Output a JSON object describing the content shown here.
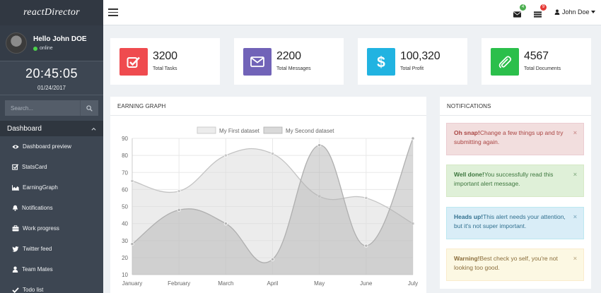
{
  "sidebar": {
    "brand": "reactDirector",
    "user": {
      "name": "Hello John DOE",
      "status": "online"
    },
    "clock": {
      "time": "20:45:05",
      "date": "01/24/2017"
    },
    "search": {
      "placeholder": "Search..."
    },
    "menu_header": "Dashboard",
    "items": [
      {
        "label": "Dashboard preview",
        "icon": "eye-icon"
      },
      {
        "label": "StatsCard",
        "icon": "checkbox-icon"
      },
      {
        "label": "EarningGraph",
        "icon": "area-chart-icon"
      },
      {
        "label": "Notifications",
        "icon": "bell-icon"
      },
      {
        "label": "Work progress",
        "icon": "briefcase-icon"
      },
      {
        "label": "Twitter feed",
        "icon": "twitter-icon"
      },
      {
        "label": "Team Mates",
        "icon": "user-icon"
      },
      {
        "label": "Todo list",
        "icon": "check-icon"
      }
    ]
  },
  "topbar": {
    "mail_badge": "4",
    "tasks_badge": "9",
    "user_label": "John Doe"
  },
  "stats": [
    {
      "value": "3200",
      "label": "Total Tasks",
      "color": "#ef4b4f",
      "icon": "checkbox-icon"
    },
    {
      "value": "2200",
      "label": "Total Messages",
      "color": "#7163b8",
      "icon": "envelope-icon"
    },
    {
      "value": "100,320",
      "label": "Total Profit",
      "color": "#21b3e1",
      "icon": "dollar-icon"
    },
    {
      "value": "4567",
      "label": "Total Documents",
      "color": "#2bbf4b",
      "icon": "paperclip-icon"
    }
  ],
  "earning": {
    "title": "EARNING GRAPH"
  },
  "chart_data": {
    "type": "line",
    "title": "",
    "categories": [
      "January",
      "February",
      "March",
      "April",
      "May",
      "June",
      "July"
    ],
    "series": [
      {
        "name": "My First dataset",
        "values": [
          65,
          59,
          80,
          81,
          56,
          55,
          40
        ]
      },
      {
        "name": "My Second dataset",
        "values": [
          28,
          48,
          40,
          19,
          86,
          27,
          90
        ]
      }
    ],
    "ylim": [
      10,
      90
    ],
    "yticks": [
      10,
      20,
      30,
      40,
      50,
      60,
      70,
      80,
      90
    ],
    "grid": true,
    "legend": "top-center"
  },
  "notifications": {
    "title": "NOTIFICATIONS",
    "close_glyph": "×",
    "alerts": [
      {
        "strong": "Oh snap!",
        "text": "Change a few things up and try submitting again.",
        "bg": "#f2dede",
        "border": "#ebccd1",
        "color": "#a94442"
      },
      {
        "strong": "Well done!",
        "text": "You successfully read this important alert message.",
        "bg": "#dff0d8",
        "border": "#d6e9c6",
        "color": "#3c763d"
      },
      {
        "strong": "Heads up!",
        "text": "This alert needs your attention, but it's not super important.",
        "bg": "#d9edf7",
        "border": "#bce8f1",
        "color": "#31708f"
      },
      {
        "strong": "Warning!",
        "text": "Best check yo self, you're not looking too good.",
        "bg": "#fcf8e3",
        "border": "#faebcc",
        "color": "#8a6d3b"
      }
    ]
  }
}
